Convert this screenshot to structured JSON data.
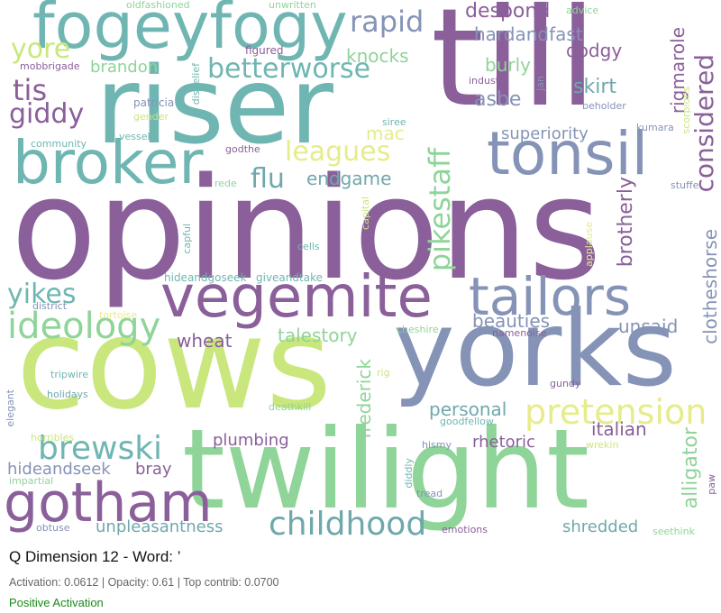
{
  "title": "Q Dimension 12 - Word: ’",
  "stats": "Activation: 0.0612 | Opacity: 0.61 | Top contrib: 0.0700",
  "sign": "Positive Activation",
  "sign_color": "#1a8a1a",
  "palette": {
    "purple": "#8a5f9a",
    "teal": "#6fb6b2",
    "green": "#8fd498",
    "lime": "#c9e77c",
    "slate": "#8593b7",
    "yellow": "#e6ec8a"
  },
  "words": [
    {
      "text": "opinions",
      "color": "#8a5f9a"
    },
    {
      "text": "cows",
      "color": "#c9e77c"
    },
    {
      "text": "yorks",
      "color": "#8593b7"
    },
    {
      "text": "till",
      "color": "#8a5f9a"
    },
    {
      "text": "riser",
      "color": "#6fb6b2"
    },
    {
      "text": "twilight",
      "color": "#8fd498"
    },
    {
      "text": "fogeyfogy",
      "color": "#6fb6b2"
    },
    {
      "text": "tonsil",
      "color": "#8593b7"
    },
    {
      "text": "broker",
      "color": "#6fb6b2"
    },
    {
      "text": "vegemite",
      "color": "#8a5f9a"
    },
    {
      "text": "tailors",
      "color": "#8593b7"
    },
    {
      "text": "gotham",
      "color": "#8a5f9a"
    },
    {
      "text": "ideology",
      "color": "#8fd498"
    },
    {
      "text": "childhood",
      "color": "#6fa8ac"
    },
    {
      "text": "pretension",
      "color": "#e6ec8a"
    },
    {
      "text": "brewski",
      "color": "#6fb6b2"
    },
    {
      "text": "pikestaff",
      "color": "#8fd498"
    },
    {
      "text": "considered",
      "color": "#8a5f9a"
    },
    {
      "text": "rapid",
      "color": "#8593b7"
    },
    {
      "text": "yore",
      "color": "#c9e77c"
    },
    {
      "text": "tis",
      "color": "#8a5f9a"
    },
    {
      "text": "giddy",
      "color": "#8a5f9a"
    },
    {
      "text": "betterworse",
      "color": "#6fb6b2"
    },
    {
      "text": "leagues",
      "color": "#e6ec8a"
    },
    {
      "text": "flu",
      "color": "#6fa8ac"
    },
    {
      "text": "endgame",
      "color": "#6fa8ac"
    },
    {
      "text": "yikes",
      "color": "#6fb6b2"
    },
    {
      "text": "despond",
      "color": "#8a5f9a"
    },
    {
      "text": "hardandfast",
      "color": "#8593b7"
    },
    {
      "text": "knocks",
      "color": "#8fd498"
    },
    {
      "text": "dodgy",
      "color": "#8a5f9a"
    },
    {
      "text": "brandon",
      "color": "#8fd498"
    },
    {
      "text": "burly",
      "color": "#8fd498"
    },
    {
      "text": "skirt",
      "color": "#6fa8ac"
    },
    {
      "text": "asbe",
      "color": "#8593b7"
    },
    {
      "text": "rigmarole",
      "color": "#8a5f9a"
    },
    {
      "text": "superiority",
      "color": "#8593b7"
    },
    {
      "text": "mac",
      "color": "#e6ec8a"
    },
    {
      "text": "brotherly",
      "color": "#8a5f9a"
    },
    {
      "text": "clotheshorse",
      "color": "#8593b7"
    },
    {
      "text": "beauties",
      "color": "#8593b7"
    },
    {
      "text": "unsaid",
      "color": "#8593b7"
    },
    {
      "text": "talestory",
      "color": "#8fd498"
    },
    {
      "text": "wheat",
      "color": "#8a5f9a"
    },
    {
      "text": "frederick",
      "color": "#8fd498"
    },
    {
      "text": "personal",
      "color": "#6fa8ac"
    },
    {
      "text": "italian",
      "color": "#8a5f9a"
    },
    {
      "text": "rhetoric",
      "color": "#8a5f9a"
    },
    {
      "text": "alligator",
      "color": "#8fd498"
    },
    {
      "text": "plumbing",
      "color": "#8a5f9a"
    },
    {
      "text": "hideandseek",
      "color": "#8593b7"
    },
    {
      "text": "bray",
      "color": "#8a5f9a"
    },
    {
      "text": "unpleasantness",
      "color": "#6fa8ac"
    },
    {
      "text": "shredded",
      "color": "#6fa8ac"
    },
    {
      "text": "oldfashioned",
      "color": "#8fd498"
    },
    {
      "text": "unwritten",
      "color": "#8fd498"
    },
    {
      "text": "advice",
      "color": "#8fd498"
    },
    {
      "text": "mobbrigade",
      "color": "#8a5f9a"
    },
    {
      "text": "figured",
      "color": "#8a5f9a"
    },
    {
      "text": "disbelief",
      "color": "#6fb6b2"
    },
    {
      "text": "industry",
      "color": "#8a5f9a"
    },
    {
      "text": "jan",
      "color": "#8593b7"
    },
    {
      "text": "patricia",
      "color": "#8593b7"
    },
    {
      "text": "beholder",
      "color": "#8593b7"
    },
    {
      "text": "gender",
      "color": "#c9e77c"
    },
    {
      "text": "siree",
      "color": "#6fb6b2"
    },
    {
      "text": "kumara",
      "color": "#8593b7"
    },
    {
      "text": "community",
      "color": "#6fb6b2"
    },
    {
      "text": "vessel",
      "color": "#6fb6b2"
    },
    {
      "text": "godthe",
      "color": "#8a5f9a"
    },
    {
      "text": "scorpions",
      "color": "#c9e77c"
    },
    {
      "text": "rede",
      "color": "#8fd498"
    },
    {
      "text": "stuffe",
      "color": "#8593b7"
    },
    {
      "text": "capful",
      "color": "#6fb6b2"
    },
    {
      "text": "capital",
      "color": "#c9e77c"
    },
    {
      "text": "applause",
      "color": "#e6ec8a"
    },
    {
      "text": "cells",
      "color": "#6fb6b2"
    },
    {
      "text": "hideandgoseek",
      "color": "#6fb6b2"
    },
    {
      "text": "giveandtake",
      "color": "#6fb6b2"
    },
    {
      "text": "district",
      "color": "#8593b7"
    },
    {
      "text": "tortoise",
      "color": "#e6ec8a"
    },
    {
      "text": "cheshire",
      "color": "#8fd498"
    },
    {
      "text": "namenoise",
      "color": "#8a5f9a"
    },
    {
      "text": "tripwire",
      "color": "#6fb6b2"
    },
    {
      "text": "rig",
      "color": "#c9e77c"
    },
    {
      "text": "holidays",
      "color": "#6fa8ac"
    },
    {
      "text": "gundy",
      "color": "#8a5f9a"
    },
    {
      "text": "elegant",
      "color": "#8593b7"
    },
    {
      "text": "deathkill",
      "color": "#8fd498"
    },
    {
      "text": "goodfellow",
      "color": "#6fb6b2"
    },
    {
      "text": "horribles",
      "color": "#c9e77c"
    },
    {
      "text": "hismy",
      "color": "#8593b7"
    },
    {
      "text": "wrekin",
      "color": "#c9e77c"
    },
    {
      "text": "impartial",
      "color": "#8fd498"
    },
    {
      "text": "diddly",
      "color": "#6fb6b2"
    },
    {
      "text": "paw",
      "color": "#8a5f9a"
    },
    {
      "text": "tread",
      "color": "#8593b7"
    },
    {
      "text": "obtuse",
      "color": "#8593b7"
    },
    {
      "text": "emotions",
      "color": "#8a5f9a"
    },
    {
      "text": "seethink",
      "color": "#8fd498"
    }
  ]
}
